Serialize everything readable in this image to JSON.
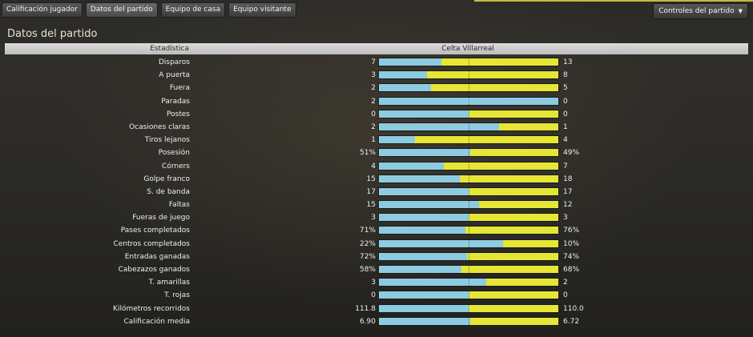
{
  "tabs": [
    {
      "label": "Calificación jugador"
    },
    {
      "label": "Datos del partido"
    },
    {
      "label": "Equipo de casa"
    },
    {
      "label": "Equipo visitante"
    }
  ],
  "active_tab": "Datos del partido",
  "controls_dropdown": {
    "label": "Controles del partido"
  },
  "page_title": "Datos del partido",
  "table": {
    "header_stat": "Estadística",
    "header_teams": "Celta Villarreal",
    "colors": {
      "home": "#8dcbe1",
      "away": "#e5e635"
    },
    "rows": [
      {
        "label": "Disparos",
        "home": "7",
        "away": "13",
        "home_share": 0.35
      },
      {
        "label": "A puerta",
        "home": "3",
        "away": "8",
        "home_share": 0.27
      },
      {
        "label": "Fuera",
        "home": "2",
        "away": "5",
        "home_share": 0.29
      },
      {
        "label": "Paradas",
        "home": "2",
        "away": "0",
        "home_share": 1.0
      },
      {
        "label": "Postes",
        "home": "0",
        "away": "0",
        "home_share": 0.5
      },
      {
        "label": "Ocasiones claras",
        "home": "2",
        "away": "1",
        "home_share": 0.67
      },
      {
        "label": "Tiros lejanos",
        "home": "1",
        "away": "4",
        "home_share": 0.2
      },
      {
        "label": "Posesión",
        "home": "51%",
        "away": "49%",
        "home_share": 0.51
      },
      {
        "label": "Córners",
        "home": "4",
        "away": "7",
        "home_share": 0.36
      },
      {
        "label": "Golpe franco",
        "home": "15",
        "away": "18",
        "home_share": 0.45
      },
      {
        "label": "S. de banda",
        "home": "17",
        "away": "17",
        "home_share": 0.5
      },
      {
        "label": "Faltas",
        "home": "15",
        "away": "12",
        "home_share": 0.56
      },
      {
        "label": "Fueras de juego",
        "home": "3",
        "away": "3",
        "home_share": 0.5
      },
      {
        "label": "Pases completados",
        "home": "71%",
        "away": "76%",
        "home_share": 0.48
      },
      {
        "label": "Centros completados",
        "home": "22%",
        "away": "10%",
        "home_share": 0.69
      },
      {
        "label": "Entradas ganadas",
        "home": "72%",
        "away": "74%",
        "home_share": 0.49
      },
      {
        "label": "Cabezazos ganados",
        "home": "58%",
        "away": "68%",
        "home_share": 0.46
      },
      {
        "label": "T. amarillas",
        "home": "3",
        "away": "2",
        "home_share": 0.6
      },
      {
        "label": "T. rojas",
        "home": "0",
        "away": "0",
        "home_share": 0.5
      },
      {
        "label": "Kilómetros recorridos",
        "home": "111.8",
        "away": "110.0",
        "home_share": 0.5
      },
      {
        "label": "Calificación media",
        "home": "6.90",
        "away": "6.72",
        "home_share": 0.51
      }
    ]
  }
}
